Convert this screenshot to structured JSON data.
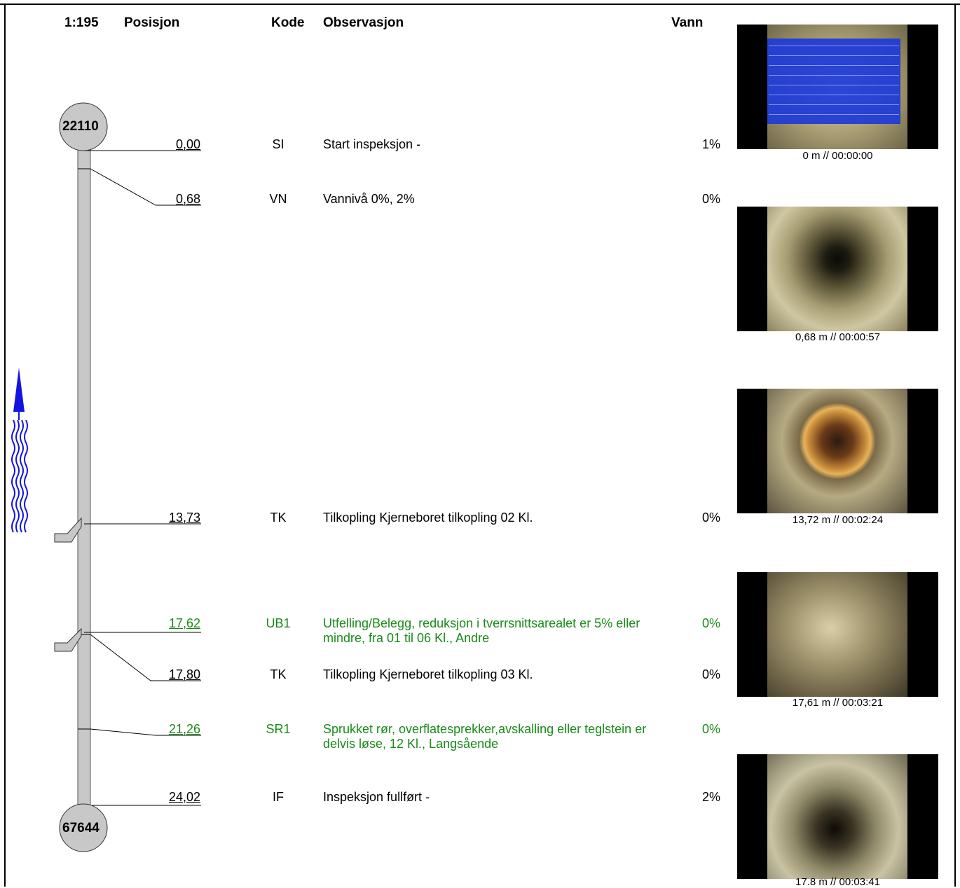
{
  "header": {
    "scale": "1:195",
    "col_position": "Posisjon",
    "col_code": "Kode",
    "col_observation": "Observasjon",
    "col_water": "Vann"
  },
  "nodes": {
    "start": "22110",
    "end": "67644"
  },
  "observations": [
    {
      "position": "0,00",
      "code": "SI",
      "text": "Start inspeksjon -",
      "water": "1%",
      "severity": "normal"
    },
    {
      "position": "0,68",
      "code": "VN",
      "text": "Vannivå 0%, 2%",
      "water": "0%",
      "severity": "normal"
    },
    {
      "position": "13,73",
      "code": "TK",
      "text": "Tilkopling Kjerneboret tilkopling  02 Kl.",
      "water": "0%",
      "severity": "normal"
    },
    {
      "position": "17,62",
      "code": "UB1",
      "text": "Utfelling/Belegg, reduksjon i tverrsnittsarealet er 5% eller mindre, fra 01 til 06 Kl., Andre",
      "water": "0%",
      "severity": "minor"
    },
    {
      "position": "17,80",
      "code": "TK",
      "text": "Tilkopling Kjerneboret tilkopling  03 Kl.",
      "water": "0%",
      "severity": "normal"
    },
    {
      "position": "21,26",
      "code": "SR1",
      "text": "Sprukket rør, overflatesprekker,avskalling eller teglstein er delvis løse,  12 Kl., Langsående",
      "water": "0%",
      "severity": "minor"
    },
    {
      "position": "24,02",
      "code": "IF",
      "text": "Inspeksjon fullført -",
      "water": "2%",
      "severity": "normal"
    }
  ],
  "photos": [
    {
      "caption": "0 m // 00:00:00",
      "scene": "info-overlay-icon"
    },
    {
      "caption": "0,68 m // 00:00:57",
      "scene": "pipe-tunnel-icon"
    },
    {
      "caption": "13,72 m // 00:02:24",
      "scene": "pipe-connection-icon"
    },
    {
      "caption": "17,61 m // 00:03:21",
      "scene": "pipe-deposit-icon"
    },
    {
      "caption": "17.8 m // 00:03:41",
      "scene": "pipe-crack-icon"
    }
  ],
  "colors": {
    "pipe": "#c8c8c8",
    "node": "#c8c8c8",
    "flow_arrow": "#1414e0",
    "minor_observation": "#1a8a1a"
  }
}
